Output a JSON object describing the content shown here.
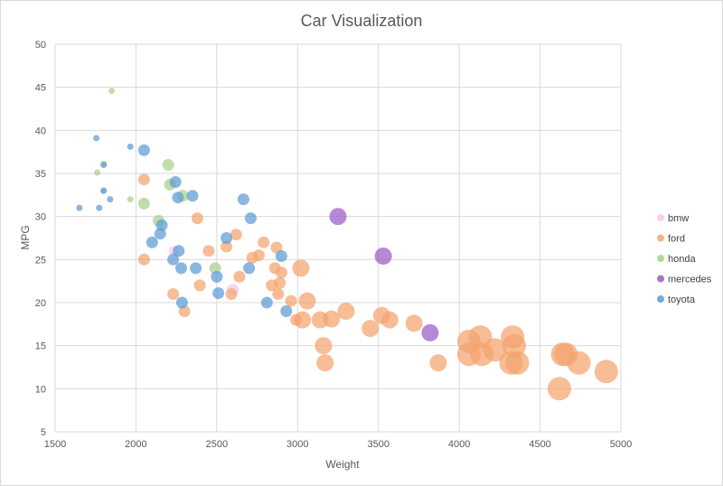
{
  "chart_data": {
    "type": "scatter",
    "title": "Car Visualization",
    "xlabel": "Weight",
    "ylabel": "MPG",
    "xlim": [
      1500,
      5000
    ],
    "ylim": [
      5,
      50
    ],
    "xticks": [
      "1500",
      "2000",
      "2500",
      "3000",
      "3500",
      "4000",
      "4500",
      "5000"
    ],
    "yticks": [
      "5",
      "10",
      "15",
      "20",
      "25",
      "30",
      "35",
      "40",
      "45",
      "50"
    ],
    "grid": true,
    "legend_position": "right",
    "series": [
      {
        "name": "bmw",
        "color": "#f7c6e8",
        "points": [
          [
            2234,
            26,
            5.5
          ],
          [
            2600,
            21.5,
            6.5
          ]
        ]
      },
      {
        "name": "ford",
        "color": "#f4a46e",
        "points": [
          [
            2050,
            34.3,
            6.5
          ],
          [
            2050,
            25,
            6.5
          ],
          [
            2230,
            21,
            6.5
          ],
          [
            2300,
            19,
            6.5
          ],
          [
            2380,
            29.8,
            6.5
          ],
          [
            2395,
            22,
            6.5
          ],
          [
            2450,
            26,
            6.5
          ],
          [
            2560,
            26.5,
            6.5
          ],
          [
            2590,
            21,
            6.5
          ],
          [
            2620,
            27.9,
            6.5
          ],
          [
            2640,
            23,
            6.5
          ],
          [
            2720,
            25.2,
            6.5
          ],
          [
            2760,
            25.5,
            6.5
          ],
          [
            2790,
            27,
            6.5
          ],
          [
            2840,
            22,
            6.5
          ],
          [
            2860,
            24,
            6.5
          ],
          [
            2870,
            26.4,
            6.5
          ],
          [
            2880,
            21,
            6.5
          ],
          [
            2890,
            22.3,
            6.5
          ],
          [
            2900,
            23.5,
            6.5
          ],
          [
            2960,
            20.2,
            6.5
          ],
          [
            2990,
            18,
            6.5
          ],
          [
            3020,
            24,
            9.5
          ],
          [
            3030,
            18,
            9.5
          ],
          [
            3060,
            20.2,
            9.5
          ],
          [
            3140,
            18,
            9.5
          ],
          [
            3160,
            15,
            9.5
          ],
          [
            3170,
            13,
            9.5
          ],
          [
            3210,
            18.1,
            9.5
          ],
          [
            3300,
            19,
            9.5
          ],
          [
            3450,
            17,
            9.5
          ],
          [
            3520,
            18.5,
            9.5
          ],
          [
            3570,
            18,
            9.5
          ],
          [
            3720,
            17.6,
            9.5
          ],
          [
            3870,
            13,
            9.5
          ],
          [
            4060,
            15.5,
            13
          ],
          [
            4060,
            14,
            13
          ],
          [
            4130,
            16,
            13
          ],
          [
            4140,
            14,
            13
          ],
          [
            4220,
            14.5,
            13
          ],
          [
            4320,
            13,
            13
          ],
          [
            4330,
            16,
            13
          ],
          [
            4340,
            15,
            13
          ],
          [
            4360,
            13,
            13
          ],
          [
            4620,
            10,
            13
          ],
          [
            4640,
            14,
            13
          ],
          [
            4660,
            14,
            13
          ],
          [
            4740,
            13,
            13
          ],
          [
            4910,
            12,
            13
          ]
        ]
      },
      {
        "name": "honda",
        "color": "#a9d08e",
        "points": [
          [
            1760,
            35.1,
            3.5
          ],
          [
            1800,
            36.1,
            3.5
          ],
          [
            1800,
            33,
            3.5
          ],
          [
            1850,
            44.6,
            3.5
          ],
          [
            1965,
            32,
            3.5
          ],
          [
            2050,
            31.5,
            6.5
          ],
          [
            2140,
            29.5,
            6.5
          ],
          [
            2200,
            36,
            6.5
          ],
          [
            2210,
            33.7,
            6.5
          ],
          [
            2290,
            32.4,
            6.5
          ],
          [
            2490,
            24,
            6.5
          ]
        ]
      },
      {
        "name": "mercedes",
        "color": "#9a5cc6",
        "points": [
          [
            3250,
            30,
            9.5
          ],
          [
            3530,
            25.4,
            9.5
          ],
          [
            3820,
            16.5,
            9.5
          ]
        ]
      },
      {
        "name": "toyota",
        "color": "#5b9bd5",
        "points": [
          [
            1650,
            31,
            3.5
          ],
          [
            1755,
            39.1,
            3.5
          ],
          [
            1773,
            31,
            3.5
          ],
          [
            1800,
            36,
            3.5
          ],
          [
            1800,
            33,
            3.5
          ],
          [
            1840,
            32,
            3.5
          ],
          [
            1965,
            38.1,
            3.5
          ],
          [
            2050,
            37.7,
            6.5
          ],
          [
            2100,
            27,
            6.5
          ],
          [
            2150,
            28,
            6.5
          ],
          [
            2160,
            29,
            6.5
          ],
          [
            2230,
            25,
            6.5
          ],
          [
            2245,
            34,
            6.5
          ],
          [
            2260,
            32.2,
            6.5
          ],
          [
            2265,
            26,
            6.5
          ],
          [
            2280,
            24,
            6.5
          ],
          [
            2285,
            20,
            6.5
          ],
          [
            2350,
            32.4,
            6.5
          ],
          [
            2370,
            24,
            6.5
          ],
          [
            2500,
            23,
            6.5
          ],
          [
            2510,
            21.1,
            6.5
          ],
          [
            2560,
            27.5,
            6.5
          ],
          [
            2665,
            32,
            6.5
          ],
          [
            2700,
            24,
            6.5
          ],
          [
            2710,
            29.8,
            6.5
          ],
          [
            2810,
            20,
            6.5
          ],
          [
            2900,
            25.4,
            6.5
          ],
          [
            2930,
            19,
            6.5
          ]
        ]
      }
    ]
  }
}
